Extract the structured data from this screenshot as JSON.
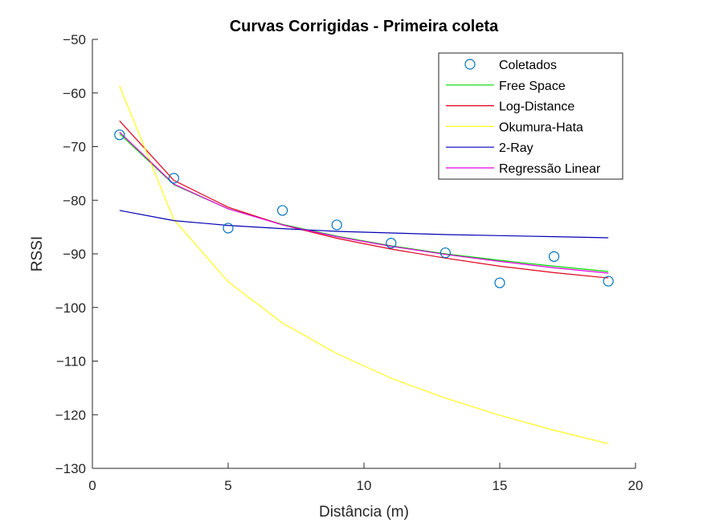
{
  "chart_data": {
    "type": "line",
    "title": "Curvas Corrigidas - Primeira coleta",
    "xlabel": "Distância (m)",
    "ylabel": "RSSI",
    "xlim": [
      0,
      20
    ],
    "ylim": [
      -130,
      -50
    ],
    "xticks": [
      0,
      5,
      10,
      15,
      20
    ],
    "yticks": [
      -130,
      -120,
      -110,
      -100,
      -90,
      -80,
      -70,
      -60,
      -50
    ],
    "xtick_labels": [
      "0",
      "5",
      "10",
      "15",
      "20"
    ],
    "ytick_labels": [
      "−130",
      "−120",
      "−110",
      "−100",
      "−90",
      "−80",
      "−70",
      "−60",
      "−50"
    ],
    "grid": false,
    "legend_position": "top-right",
    "x": [
      1,
      3,
      5,
      7,
      9,
      11,
      13,
      15,
      17,
      19
    ],
    "series": [
      {
        "name": "Coletados",
        "kind": "markers",
        "color": "#0072bd",
        "values": [
          -67.8,
          -75.9,
          -85.2,
          -81.9,
          -84.6,
          -88.0,
          -89.8,
          -95.4,
          -90.5,
          -95.1
        ]
      },
      {
        "name": "Free Space",
        "kind": "line",
        "color": "#00d800",
        "values": [
          -67.6,
          -77.1,
          -81.6,
          -84.5,
          -86.7,
          -88.5,
          -90.0,
          -91.2,
          -92.3,
          -93.3
        ]
      },
      {
        "name": "Log-Distance",
        "kind": "line",
        "color": "#e0001b",
        "values": [
          -65.2,
          -76.3,
          -81.3,
          -84.6,
          -87.1,
          -89.1,
          -90.8,
          -92.3,
          -93.5,
          -94.5
        ]
      },
      {
        "name": "Okumura-Hata",
        "kind": "line",
        "color": "#ffff1a",
        "values": [
          -58.7,
          -83.6,
          -95.2,
          -102.9,
          -108.6,
          -113.2,
          -116.9,
          -120.1,
          -122.9,
          -125.4
        ]
      },
      {
        "name": "2-Ray",
        "kind": "line",
        "color": "#0000b4",
        "values": [
          -81.9,
          -83.8,
          -84.7,
          -85.3,
          -85.8,
          -86.1,
          -86.4,
          -86.6,
          -86.8,
          -87.0
        ]
      },
      {
        "name": "Regressão Linear",
        "kind": "line",
        "color": "#e600e6",
        "values": [
          -67.3,
          -77.0,
          -81.6,
          -84.6,
          -86.8,
          -88.6,
          -90.1,
          -91.4,
          -92.6,
          -93.6
        ]
      }
    ]
  }
}
